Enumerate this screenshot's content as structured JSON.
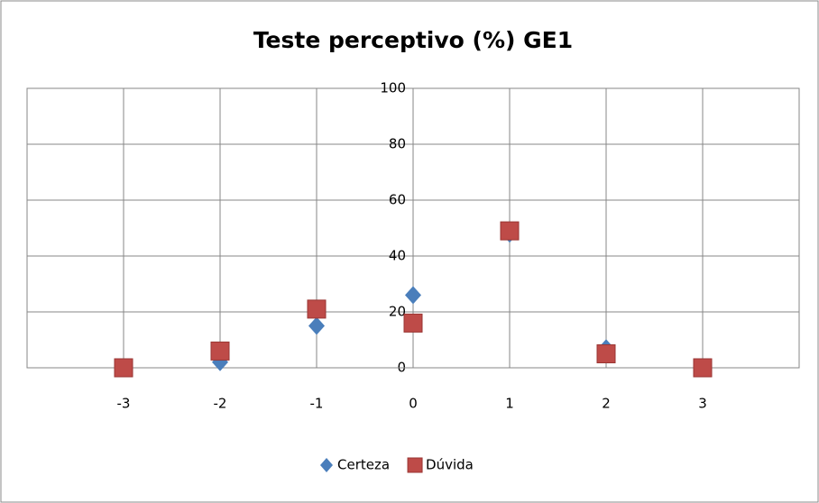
{
  "chart_data": {
    "type": "scatter",
    "title": "Teste perceptivo (%) GE1",
    "x": [
      -3,
      -2,
      -1,
      0,
      1,
      2,
      3
    ],
    "series": [
      {
        "name": "Certeza",
        "color": "#4a7ebb",
        "marker": "diamond",
        "values": [
          0,
          2,
          15,
          26,
          48,
          7,
          0
        ]
      },
      {
        "name": "Dúvida",
        "color": "#be4b48",
        "marker": "square",
        "values": [
          0,
          6,
          21,
          16,
          49,
          5,
          0
        ]
      }
    ],
    "xlim": [
      -4,
      4
    ],
    "xticks": [
      -3,
      -2,
      -1,
      0,
      1,
      2,
      3
    ],
    "ylim": [
      0,
      100
    ],
    "yticks": [
      0,
      20,
      40,
      60,
      80,
      100
    ],
    "grid": true,
    "legend": "bottom"
  }
}
